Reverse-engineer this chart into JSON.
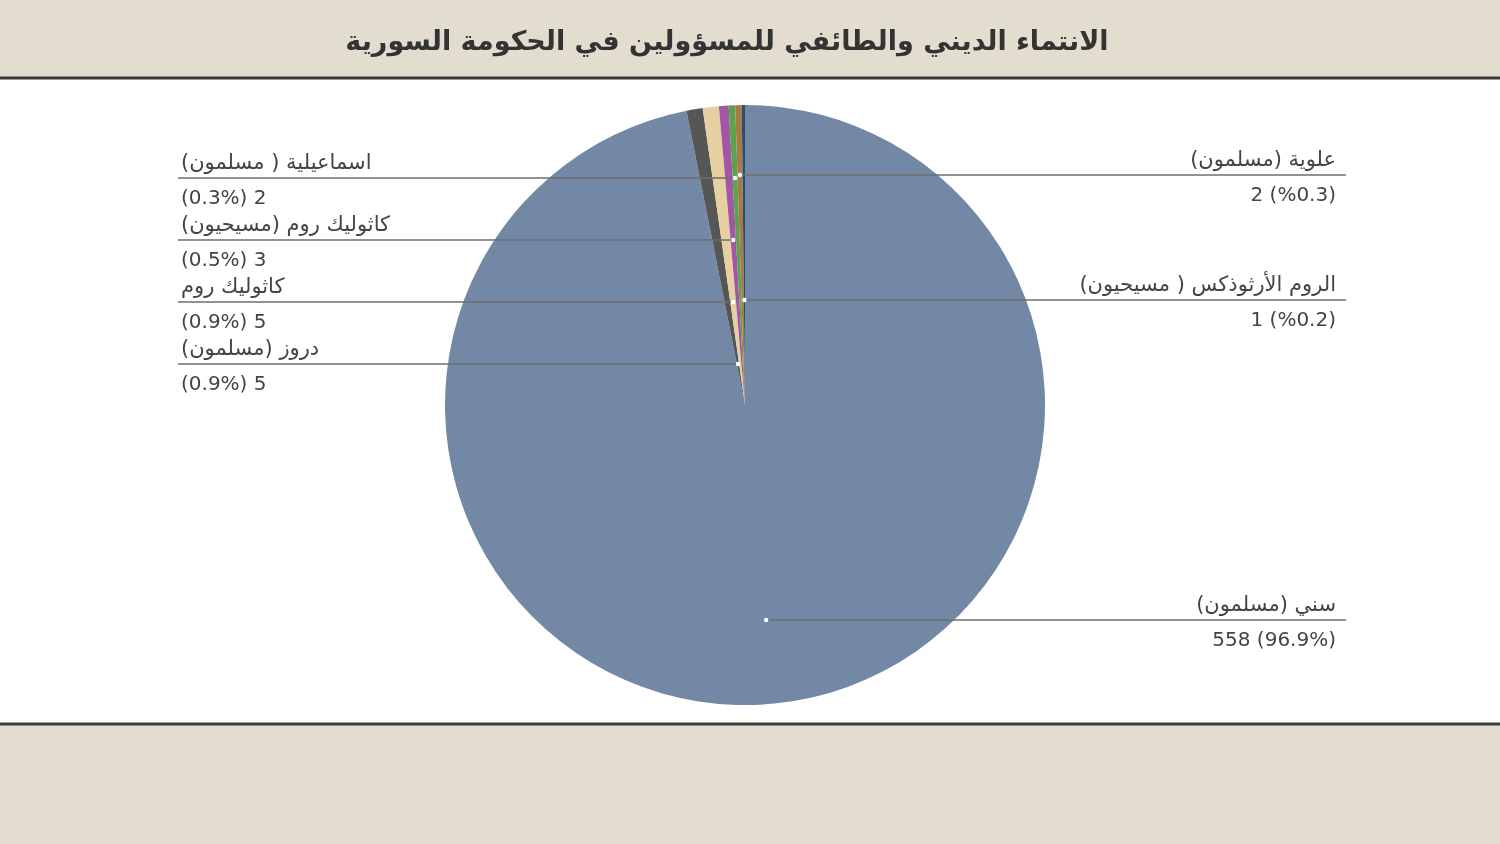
{
  "chart_data": {
    "type": "pie",
    "title": "الانتماء الديني والطائفي للمسؤولين في الحكومة السورية",
    "categories": [
      "سني (مسلمون)",
      "دروز (مسلمون)",
      "كاثوليك روم",
      "كاثوليك روم (مسيحيون)",
      "اسماعيلية ( مسلمون)",
      "علوية (مسلمون)",
      "الروم الأرثوذكس ( مسيحيون)"
    ],
    "values": [
      558,
      5,
      5,
      3,
      2,
      2,
      1
    ],
    "colors": [
      "#7388a5",
      "#565656",
      "#e6cfa1",
      "#a355a6",
      "#5aa34a",
      "#a87a45",
      "#2b4e74"
    ],
    "value_labels": [
      "558 (96.9%)",
      "(0.9%) 5",
      "(0.9%) 5",
      "(0.5%) 3",
      "(0.3%) 2",
      "2 (%0.3)",
      "1 (%0.2)"
    ]
  }
}
